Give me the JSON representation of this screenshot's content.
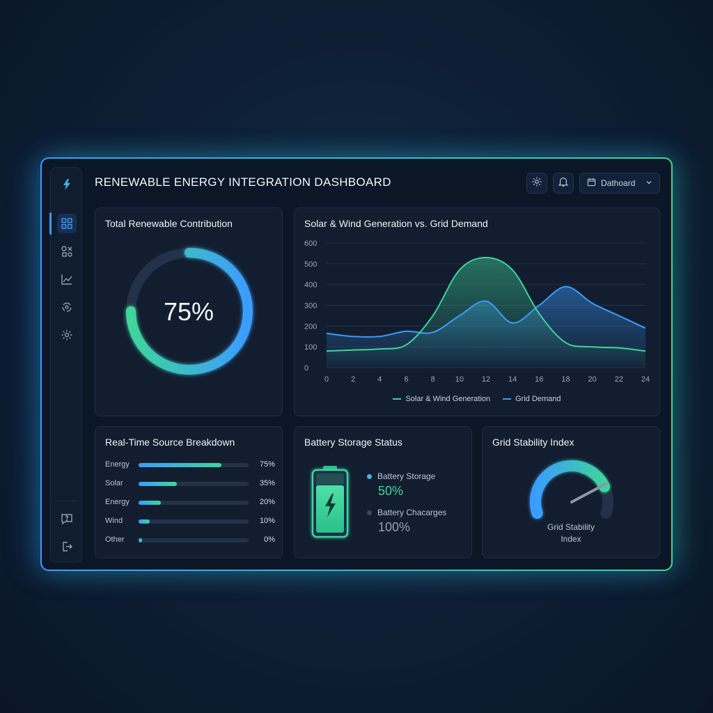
{
  "header": {
    "title": "RENEWABLE ENERGY INTEGRATION DASHBOARD",
    "select_label": "Dathoard",
    "icons": [
      "gear-icon",
      "bell-icon",
      "calendar-icon",
      "chevron-down-icon"
    ]
  },
  "sidebar": {
    "items": [
      {
        "name": "logo-icon"
      },
      {
        "name": "grid-icon",
        "active": true
      },
      {
        "name": "sources-icon"
      },
      {
        "name": "trend-icon"
      },
      {
        "name": "recycle-icon"
      },
      {
        "name": "gear-icon"
      },
      {
        "name": "help-icon"
      },
      {
        "name": "logout-icon"
      }
    ]
  },
  "contribution": {
    "title": "Total Renewable Contribution",
    "value_label": "75%",
    "value": 75
  },
  "generation_chart": {
    "title": "Solar & Wind Generation vs. Grid Demand"
  },
  "chart_data": {
    "type": "area",
    "x": [
      0,
      2,
      4,
      6,
      8,
      10,
      12,
      14,
      16,
      18,
      20,
      22,
      24
    ],
    "x_ticks": [
      "0",
      "2",
      "4",
      "6",
      "8",
      "10",
      "12",
      "14",
      "16",
      "18",
      "20",
      "22",
      "24"
    ],
    "y_ticks": [
      "0",
      "100",
      "200",
      "300",
      "400",
      "500",
      "600"
    ],
    "ylim": [
      0,
      600
    ],
    "xlim": [
      0,
      24
    ],
    "grid": true,
    "legend": "bottom",
    "series": [
      {
        "name": "Solar & Wind Generation",
        "color": "#3fd59a",
        "values": [
          80,
          85,
          90,
          110,
          250,
          470,
          530,
          470,
          260,
          120,
          100,
          95,
          80
        ]
      },
      {
        "name": "Grid Demand",
        "color": "#3b9cff",
        "values": [
          165,
          150,
          150,
          175,
          170,
          250,
          320,
          215,
          300,
          390,
          310,
          250,
          190
        ]
      }
    ]
  },
  "breakdown": {
    "title": "Real-Time Source Breakdown",
    "rows": [
      {
        "label": "Energy",
        "value_label": "75%",
        "value": 75
      },
      {
        "label": "Solar",
        "value_label": "35%",
        "value": 35
      },
      {
        "label": "Energy",
        "value_label": "20%",
        "value": 20
      },
      {
        "label": "Wind",
        "value_label": "10%",
        "value": 10
      },
      {
        "label": "Other",
        "value_label": "0%",
        "value": 0
      }
    ]
  },
  "battery": {
    "title": "Battery Storage Status",
    "items": [
      {
        "label": "Battery Storage",
        "value": "50%",
        "color": "#3fd59a"
      },
      {
        "label": "Battery Chacarges",
        "value": "100%",
        "color": "#8fa0b3"
      }
    ],
    "level": 50
  },
  "stability": {
    "title": "Grid Stability Index",
    "label_line1": "Grid Stability",
    "label_line2": "Index",
    "level": 0.8
  }
}
